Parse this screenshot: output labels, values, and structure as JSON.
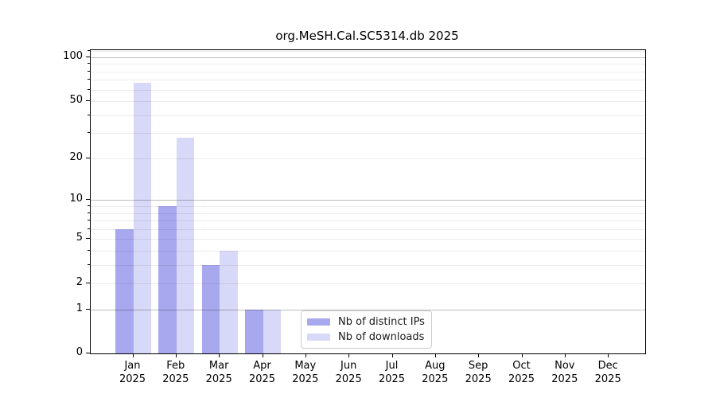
{
  "chart_data": {
    "type": "bar",
    "title": "org.MeSH.Cal.SC5314.db 2025",
    "categories": [
      "Jan",
      "Feb",
      "Mar",
      "Apr",
      "May",
      "Jun",
      "Jul",
      "Aug",
      "Sep",
      "Oct",
      "Nov",
      "Dec"
    ],
    "x_tick_year": "2025",
    "series": [
      {
        "name": "Nb of distinct IPs",
        "color": "#a8a8ee",
        "values": [
          6,
          9,
          3,
          1,
          0,
          0,
          0,
          0,
          0,
          0,
          0,
          0
        ]
      },
      {
        "name": "Nb of downloads",
        "color": "#d8d8f8",
        "values": [
          67,
          28,
          4,
          1,
          0,
          0,
          0,
          0,
          0,
          0,
          0,
          0
        ]
      }
    ],
    "y_scale": "log1p",
    "ylim": [
      0,
      112
    ],
    "y_ticks_labeled": [
      0,
      1,
      2,
      5,
      10,
      20,
      50,
      100
    ],
    "y_gridlines_major": [
      1,
      10,
      100
    ],
    "y_gridlines_minor": [
      2,
      3,
      4,
      5,
      6,
      7,
      8,
      9,
      20,
      30,
      40,
      50,
      60,
      70,
      80,
      90,
      110
    ],
    "grid": true,
    "legend_position": "lower center inside"
  }
}
